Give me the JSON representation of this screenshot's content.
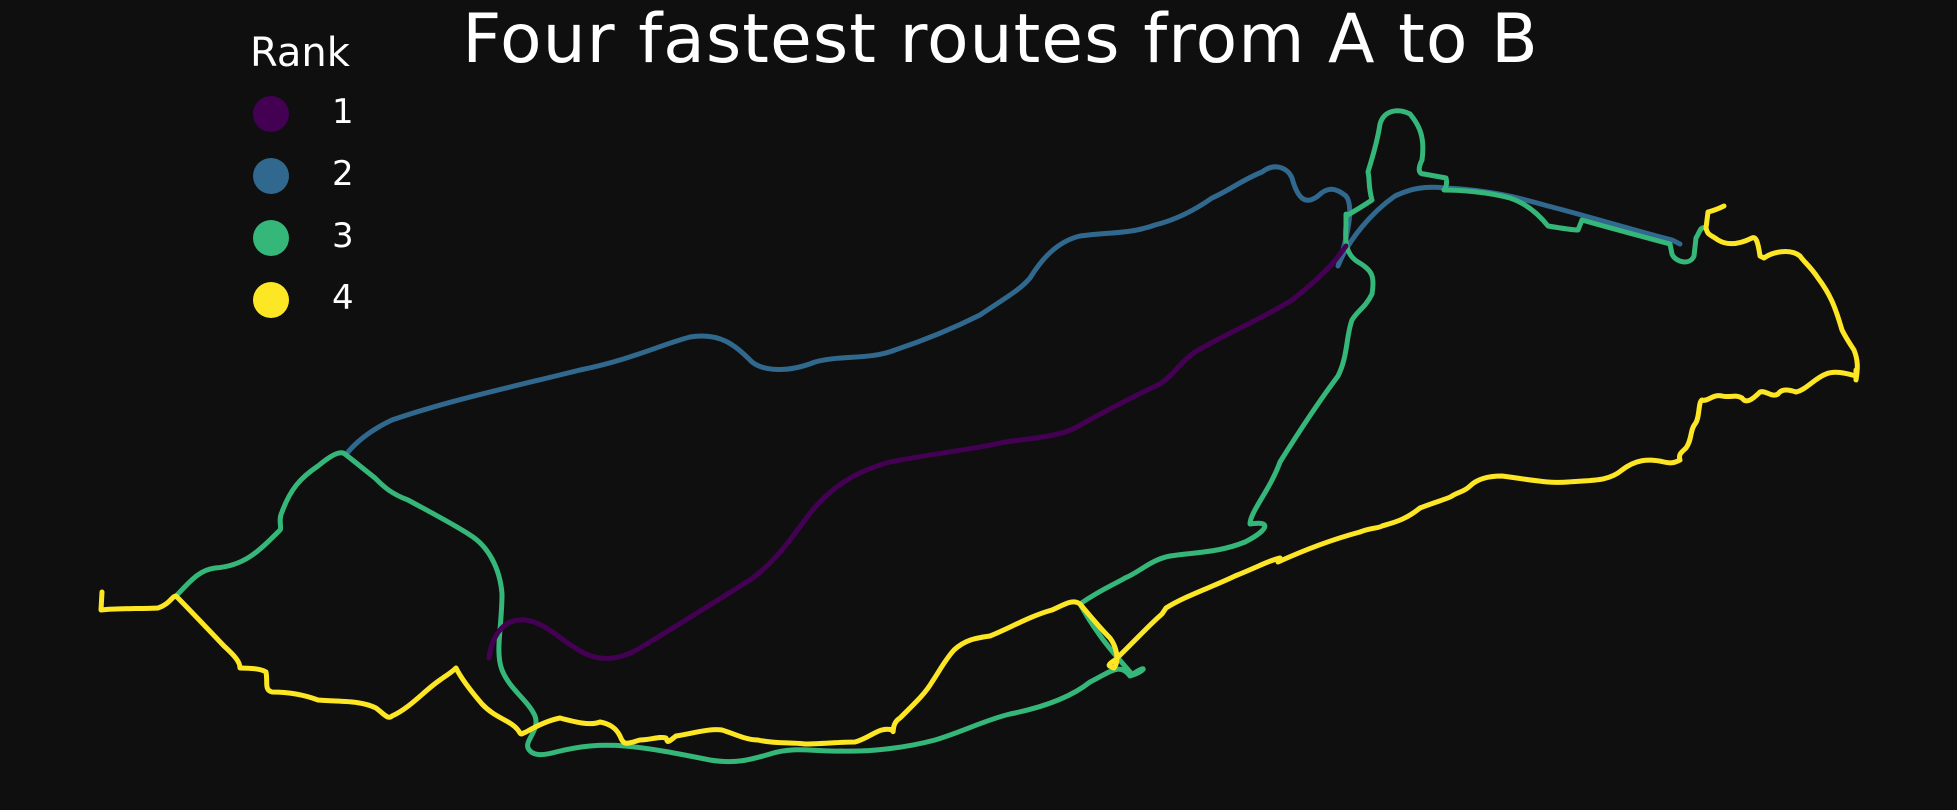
{
  "title": "Four fastest routes from A to B",
  "legend": {
    "title": "Rank",
    "items": [
      {
        "label": "1",
        "color": "#440154"
      },
      {
        "label": "2",
        "color": "#31688e"
      },
      {
        "label": "3",
        "color": "#35b779"
      },
      {
        "label": "4",
        "color": "#fde725"
      }
    ]
  },
  "colors": {
    "background": "#0f0f0f",
    "text": "#ffffff"
  }
}
